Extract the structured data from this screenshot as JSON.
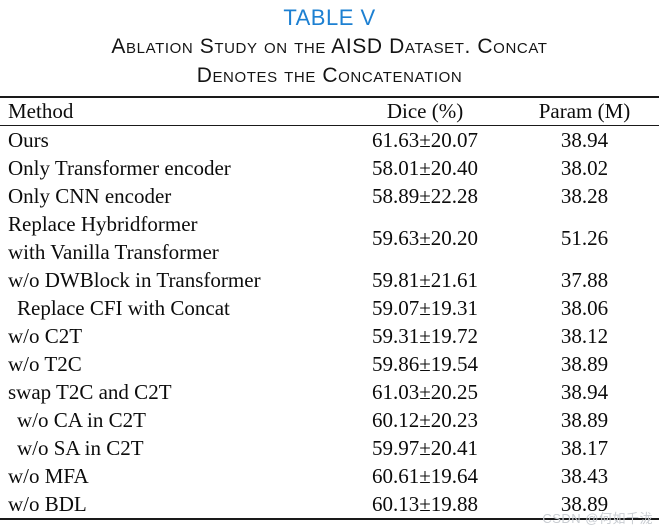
{
  "page": {
    "title": "TABLE V",
    "caption_line1": "Ablation Study on the AISD Dataset. Concat",
    "caption_line2": "Denotes the Concatenation"
  },
  "colors": {
    "title_blue": "#1d80d2",
    "rule_black": "#1a1a1a",
    "watermark_gray": "#c9cdd2",
    "background": "#ffffff"
  },
  "table": {
    "headers": [
      "Method",
      "Dice (%)",
      "Param (M)"
    ],
    "rows": [
      {
        "method": "Ours",
        "dice": "61.63±20.07",
        "param": "38.94"
      },
      {
        "method": "Only Transformer encoder",
        "dice": "58.01±20.40",
        "param": "38.02"
      },
      {
        "method": "Only CNN encoder",
        "dice": "58.89±22.28",
        "param": "38.28"
      },
      {
        "method": "Replace Hybridformer with Vanilla Transformer",
        "method_lines": [
          "Replace Hybridformer",
          "with Vanilla Transformer"
        ],
        "dice": "59.63±20.20",
        "param": "51.26"
      },
      {
        "method": "w/o DWBlock in Transformer",
        "dice": "59.81±21.61",
        "param": "37.88"
      },
      {
        "method": "Replace CFI with Concat",
        "indent": true,
        "dice": "59.07±19.31",
        "param": "38.06"
      },
      {
        "method": "w/o C2T",
        "dice": "59.31±19.72",
        "param": "38.12"
      },
      {
        "method": "w/o T2C",
        "dice": "59.86±19.54",
        "param": "38.89"
      },
      {
        "method": "swap T2C and C2T",
        "dice": "61.03±20.25",
        "param": "38.94"
      },
      {
        "method": "w/o CA in C2T",
        "indent": true,
        "dice": "60.12±20.23",
        "param": "38.89"
      },
      {
        "method": "w/o SA in C2T",
        "indent": true,
        "dice": "59.97±20.41",
        "param": "38.17"
      },
      {
        "method": "w/o MFA",
        "dice": "60.61±19.64",
        "param": "38.43"
      },
      {
        "method": "w/o BDL",
        "dice": "60.13±19.88",
        "param": "38.89"
      }
    ]
  },
  "watermark": {
    "text": "CSDN @何如千泷"
  }
}
